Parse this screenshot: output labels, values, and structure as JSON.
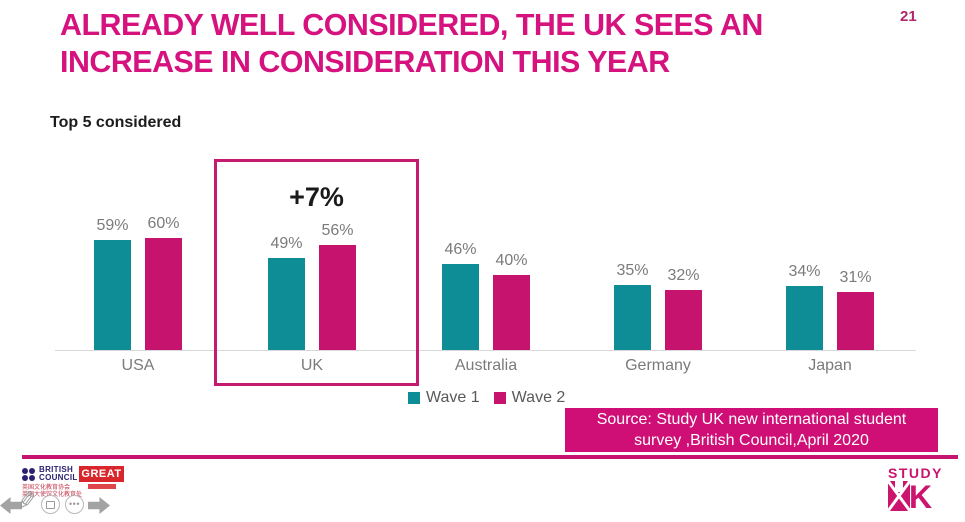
{
  "page_number": "21",
  "title": {
    "line1": "ALREADY WELL CONSIDERED, THE UK SEES AN",
    "line2": "INCREASE IN CONSIDERATION THIS YEAR"
  },
  "chart_data": {
    "type": "bar",
    "title": "Top 5 considered",
    "categories": [
      "USA",
      "UK",
      "Australia",
      "Germany",
      "Japan"
    ],
    "series": [
      {
        "name": "Wave 1",
        "color": "#0f8d96",
        "values": [
          59,
          49,
          46,
          35,
          34
        ]
      },
      {
        "name": "Wave 2",
        "color": "#c5136e",
        "values": [
          60,
          56,
          40,
          32,
          31
        ]
      }
    ],
    "value_suffix": "%",
    "value_labels": true,
    "highlight": {
      "category": "UK",
      "annotation": "+7%"
    },
    "ylim": [
      0,
      100
    ],
    "grid": false,
    "legend_position": "bottom-center"
  },
  "source_box": {
    "line1": "Source: Study UK new international student",
    "line2": "survey ,British Council,April 2020"
  },
  "footer": {
    "british_council": {
      "line1": "BRITISH",
      "line2": "COUNCIL",
      "cn_line1": "英国文化教育协会",
      "cn_line2": "英国大使馆文化教育处"
    },
    "great_label": "GREAT",
    "study_uk": {
      "word": "STUDY",
      "k": "K"
    }
  },
  "controls": {
    "ellipsis": "•••"
  },
  "colors": {
    "accent_magenta": "#d6127f",
    "bar_teal": "#0f8d96",
    "bar_magenta": "#c5136e",
    "highlight_border": "#c51a70",
    "source_box_bg": "#cf0f76",
    "label_gray": "#7b7b7b",
    "axis_gray": "#d9d9d9",
    "bc_navy": "#2a2171",
    "great_red": "#d8262c"
  }
}
